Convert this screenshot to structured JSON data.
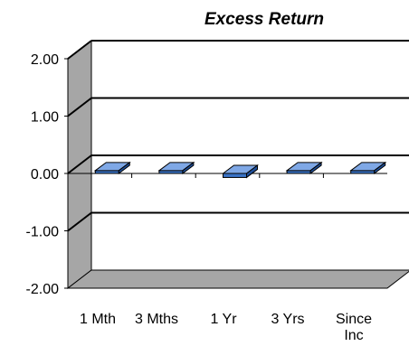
{
  "chart_data": {
    "type": "bar",
    "title": "Excess Return",
    "categories": [
      "1 Mth",
      "3 Mths",
      "1 Yr",
      "3 Yrs",
      "Since Inc"
    ],
    "values": [
      0.05,
      0.05,
      -0.07,
      0.05,
      0.05
    ],
    "ylim": [
      -2.0,
      2.0
    ],
    "yticks": [
      "2.00",
      "1.00",
      "0.00",
      "-1.00",
      "-2.00"
    ],
    "ytick_values": [
      2,
      1,
      0,
      -1,
      -2
    ],
    "grid": true,
    "legend": "none",
    "colors": {
      "bar_front": "#3a73c6",
      "bar_top": "#7fa8e6",
      "bar_side": "#1f4f99",
      "wall": "#ffffff",
      "wall_side": "#a6a6a6",
      "floor": "#a6a6a6",
      "gridline": "#000000"
    }
  }
}
